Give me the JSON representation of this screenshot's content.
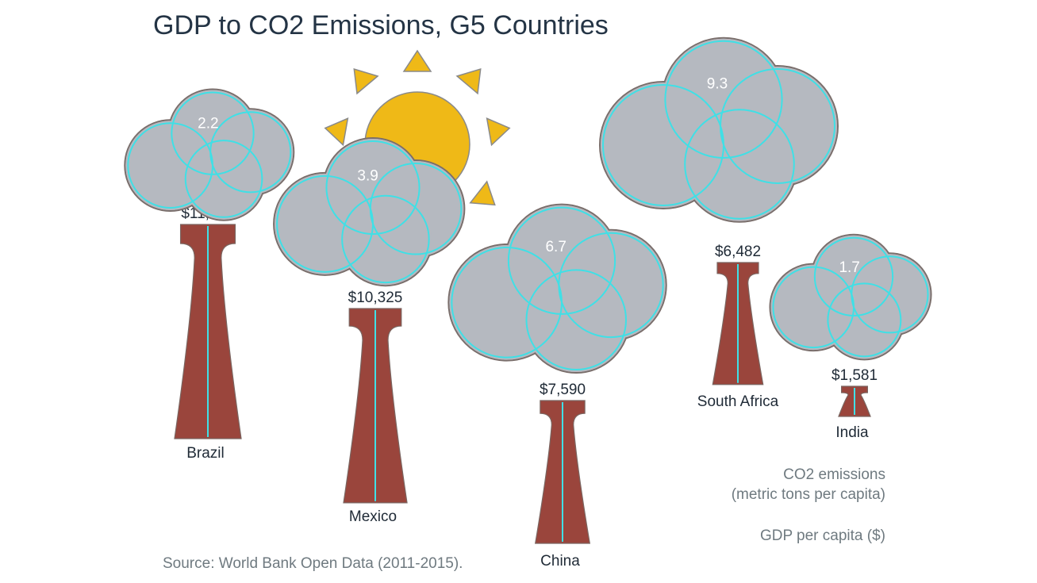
{
  "title": "GDP to CO2 Emissions, G5 Countries",
  "source": "Source: World Bank Open Data (2011-2015).",
  "legend": {
    "co2_line1": "CO2 emissions",
    "co2_line2": "(metric tons per capita)",
    "gdp": "GDP per capita ($)"
  },
  "colors": {
    "chimney": "#9a453c",
    "chimney_stroke": "#7a6560",
    "cloud_fill": "#b5b9c0",
    "cloud_ring": "#3fe0e6",
    "cloud_outline": "#7a6e6b",
    "sun": "#efb917",
    "sun_stroke": "#8a8a8a",
    "chimney_line": "#3fe0e6"
  },
  "chart_data": {
    "type": "pictograph",
    "series": [
      {
        "name": "CO2 emissions (metric tons per capita)",
        "values": [
          2.2,
          3.9,
          6.7,
          9.3,
          1.7
        ]
      },
      {
        "name": "GDP per capita ($)",
        "values": [
          11384,
          10325,
          7590,
          6482,
          1581
        ]
      }
    ],
    "countries": [
      {
        "country": "Brazil",
        "gdp_label": "$11,384",
        "gdp": 11384,
        "co2_label": "2.2",
        "co2": 2.2
      },
      {
        "country": "Mexico",
        "gdp_label": "$10,325",
        "gdp": 10325,
        "co2_label": "3.9",
        "co2": 3.9
      },
      {
        "country": "China",
        "gdp_label": "$7,590",
        "gdp": 7590,
        "co2_label": "6.7",
        "co2": 6.7
      },
      {
        "country": "South Africa",
        "gdp_label": "$6,482",
        "gdp": 6482,
        "co2_label": "9.3",
        "co2": 9.3
      },
      {
        "country": "India",
        "gdp_label": "$1,581",
        "gdp": 1581,
        "co2_label": "1.7",
        "co2": 1.7
      }
    ]
  }
}
